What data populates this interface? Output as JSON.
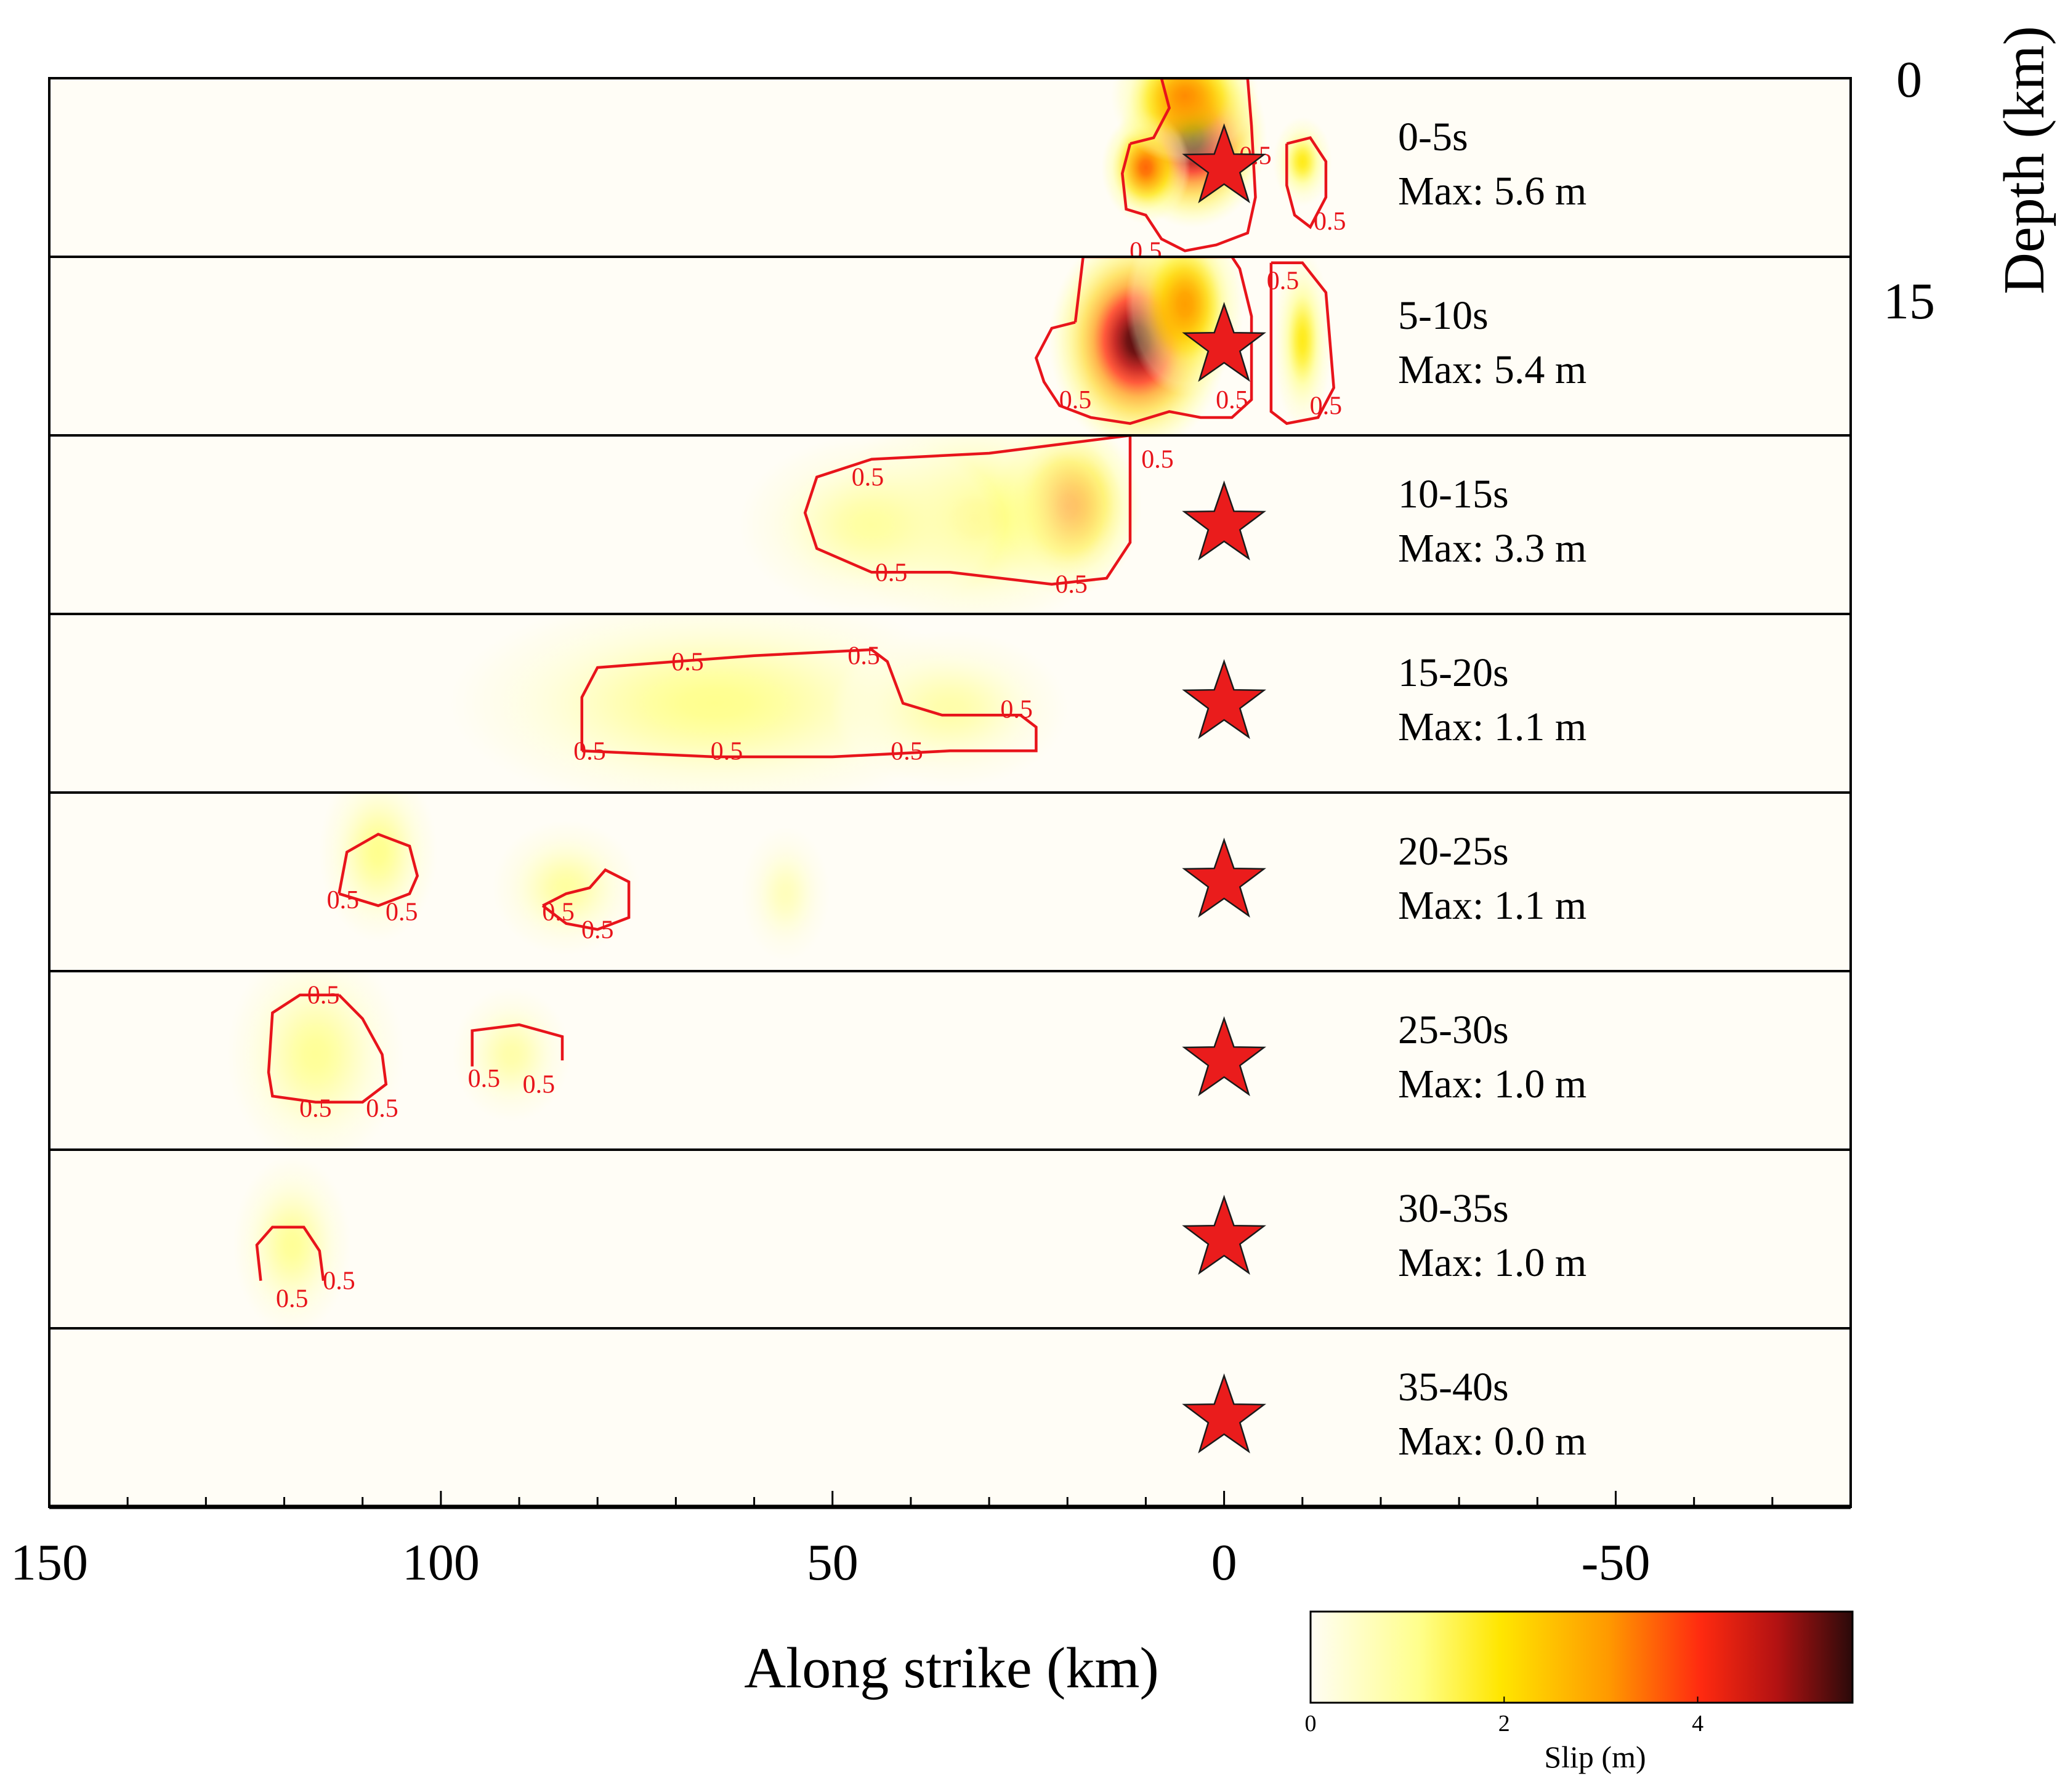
{
  "chart_data": {
    "type": "heatmap",
    "description_free": true,
    "xlabel": "Along strike (km)",
    "ylabel": "Depth (km)",
    "xlim": [
      150,
      -80
    ],
    "x_ticks": [
      150,
      100,
      50,
      0,
      -50
    ],
    "x_minor_step": 10,
    "depth_ticks": [
      0,
      15
    ],
    "depth_range": [
      0,
      15
    ],
    "hypocenter_x": 0,
    "contour_level": 0.5,
    "contour_label": "0.5",
    "colorbar": {
      "title": "Slip (m)",
      "range": [
        0,
        5.6
      ],
      "ticks": [
        "0",
        "2",
        "4"
      ],
      "tick_values": [
        0,
        2,
        4
      ],
      "colors": [
        "#fffdf4",
        "#ffff8c",
        "#ffe600",
        "#ff9900",
        "#ff2a10",
        "#b31212",
        "#2a0a0a"
      ]
    },
    "panels": [
      {
        "time": "0-5s",
        "max_text": "Max: 5.6 m",
        "max": 5.6,
        "patches": [
          {
            "x": 4,
            "d": 5.0,
            "sx": 5,
            "sd": 4.0,
            "slip": 5.6
          },
          {
            "x": 10,
            "d": 7.5,
            "sx": 3,
            "sd": 2.5,
            "slip": 3.5
          },
          {
            "x": 5,
            "d": 1.5,
            "sx": 5,
            "sd": 3.0,
            "slip": 3.2
          },
          {
            "x": -10,
            "d": 7.0,
            "sx": 2,
            "sd": 2.0,
            "slip": 1.8
          }
        ],
        "contours": [
          {
            "pts": [
              [
                12,
                5.5
              ],
              [
                13,
                8
              ],
              [
                12.5,
                11
              ],
              [
                10,
                11.5
              ],
              [
                8,
                13.5
              ],
              [
                5,
                14.5
              ],
              [
                1,
                14
              ],
              [
                -3,
                13
              ],
              [
                -4,
                10
              ],
              [
                -3.5,
                4
              ],
              [
                -3,
                0
              ],
              [
                8,
                0
              ],
              [
                7,
                2.5
              ],
              [
                9,
                5
              ],
              [
                12,
                5.5
              ]
            ],
            "labels": [
              [
                10,
                14.5
              ],
              [
                -4,
                6.5
              ]
            ]
          },
          {
            "pts": [
              [
                -8,
                5.5
              ],
              [
                -11,
                5
              ],
              [
                -13,
                7
              ],
              [
                -13,
                10
              ],
              [
                -11,
                12.5
              ],
              [
                -9,
                11.5
              ],
              [
                -8,
                9
              ],
              [
                -8,
                5.5
              ]
            ],
            "labels": [
              [
                -13.5,
                12
              ]
            ]
          }
        ]
      },
      {
        "time": "5-10s",
        "max_text": "Max: 5.4 m",
        "max": 5.4,
        "patches": [
          {
            "x": 11,
            "d": 7.0,
            "sx": 6,
            "sd": 5.0,
            "slip": 5.4
          },
          {
            "x": 5,
            "d": 4.0,
            "sx": 4,
            "sd": 4.0,
            "slip": 3.0
          },
          {
            "x": -10,
            "d": 7.0,
            "sx": 2,
            "sd": 4.0,
            "slip": 1.8
          }
        ],
        "contours": [
          {
            "pts": [
              [
                19,
                5.5
              ],
              [
                22,
                6
              ],
              [
                24,
                8.5
              ],
              [
                23,
                10.5
              ],
              [
                21,
                12.5
              ],
              [
                17,
                13.5
              ],
              [
                12,
                14
              ],
              [
                7,
                13
              ],
              [
                3,
                13.5
              ],
              [
                -1,
                13.5
              ],
              [
                -3.5,
                12
              ],
              [
                -3.5,
                5
              ],
              [
                -2,
                1
              ],
              [
                -1,
                0
              ],
              [
                18,
                0
              ],
              [
                19,
                5.5
              ]
            ],
            "labels": [
              [
                19,
                12
              ],
              [
                -1,
                12
              ]
            ]
          },
          {
            "pts": [
              [
                -6,
                0.5
              ],
              [
                -6,
                13
              ],
              [
                -8,
                14
              ],
              [
                -12,
                13.5
              ],
              [
                -14,
                11
              ],
              [
                -13,
                3
              ],
              [
                -10,
                0.5
              ],
              [
                -6,
                0.5
              ]
            ],
            "labels": [
              [
                -7.5,
                2
              ],
              [
                -13,
                12.5
              ]
            ]
          }
        ]
      },
      {
        "time": "10-15s",
        "max_text": "Max: 3.3 m",
        "max": 3.3,
        "patches": [
          {
            "x": 20,
            "d": 6.0,
            "sx": 5,
            "sd": 4.0,
            "slip": 3.3
          },
          {
            "x": 32,
            "d": 7.0,
            "sx": 10,
            "sd": 5.0,
            "slip": 1.3
          },
          {
            "x": 45,
            "d": 7.5,
            "sx": 9,
            "sd": 4.0,
            "slip": 0.9
          }
        ],
        "contours": [
          {
            "pts": [
              [
                12,
                0
              ],
              [
                30,
                1.5
              ],
              [
                45,
                2.0
              ],
              [
                52,
                3.5
              ],
              [
                53.5,
                6.5
              ],
              [
                52,
                9.5
              ],
              [
                45,
                11.5
              ],
              [
                35,
                11.5
              ],
              [
                22,
                12.5
              ],
              [
                15,
                12
              ],
              [
                12,
                9
              ],
              [
                12,
                0
              ]
            ],
            "labels": [
              [
                45.5,
                3.5
              ],
              [
                42.5,
                11.5
              ],
              [
                19.5,
                12.5
              ],
              [
                8.5,
                2
              ]
            ]
          }
        ]
      },
      {
        "time": "15-20s",
        "max_text": "Max: 1.1 m",
        "max": 1.1,
        "patches": [
          {
            "x": 65,
            "d": 7.5,
            "sx": 18,
            "sd": 5.0,
            "slip": 1.1
          },
          {
            "x": 35,
            "d": 8.0,
            "sx": 8,
            "sd": 3.5,
            "slip": 0.8
          }
        ],
        "contours": [
          {
            "pts": [
              [
                82,
                11.5
              ],
              [
                82,
                7
              ],
              [
                80,
                4.5
              ],
              [
                70,
                4
              ],
              [
                60,
                3.5
              ],
              [
                45,
                3.0
              ],
              [
                43,
                4
              ],
              [
                41,
                7.5
              ],
              [
                36,
                8.5
              ],
              [
                26,
                8.5
              ],
              [
                24,
                9.5
              ],
              [
                24,
                11.5
              ],
              [
                35,
                11.5
              ],
              [
                50,
                12
              ],
              [
                65,
                12
              ],
              [
                82,
                11.5
              ]
            ],
            "labels": [
              [
                68.5,
                4
              ],
              [
                46,
                3.5
              ],
              [
                26.5,
                8
              ],
              [
                81,
                11.5
              ],
              [
                63.5,
                11.5
              ],
              [
                40.5,
                11.5
              ]
            ]
          }
        ]
      },
      {
        "time": "20-25s",
        "max_text": "Max: 1.1 m",
        "max": 1.1,
        "patches": [
          {
            "x": 108,
            "d": 5.0,
            "sx": 4,
            "sd": 4.0,
            "slip": 1.1
          },
          {
            "x": 84,
            "d": 8.0,
            "sx": 5,
            "sd": 3.0,
            "slip": 0.9
          },
          {
            "x": 56,
            "d": 8.5,
            "sx": 3,
            "sd": 3.0,
            "slip": 0.6
          }
        ],
        "contours": [
          {
            "pts": [
              [
                113,
                8.5
              ],
              [
                112,
                5
              ],
              [
                108,
                3.5
              ],
              [
                104,
                4.5
              ],
              [
                103,
                7
              ],
              [
                104,
                8.5
              ],
              [
                108,
                9.5
              ],
              [
                113,
                8.5
              ]
            ],
            "labels": [
              [
                112.5,
                9
              ],
              [
                105,
                10
              ]
            ]
          },
          {
            "pts": [
              [
                87,
                9.5
              ],
              [
                84,
                11
              ],
              [
                80,
                11.5
              ],
              [
                76,
                10.5
              ],
              [
                76,
                7.5
              ],
              [
                79,
                6.5
              ],
              [
                81,
                8
              ],
              [
                84,
                8.5
              ],
              [
                87,
                9.5
              ]
            ],
            "labels": [
              [
                85,
                10
              ],
              [
                80,
                11.5
              ]
            ]
          }
        ]
      },
      {
        "time": "25-30s",
        "max_text": "Max: 1.0 m",
        "max": 1.0,
        "patches": [
          {
            "x": 116,
            "d": 7.0,
            "sx": 6,
            "sd": 5.0,
            "slip": 1.0
          },
          {
            "x": 91,
            "d": 7.0,
            "sx": 4,
            "sd": 3.0,
            "slip": 0.8
          }
        ],
        "contours": [
          {
            "pts": [
              [
                113,
                2.0
              ],
              [
                118,
                2.0
              ],
              [
                121.5,
                3.5
              ],
              [
                122,
                8.5
              ],
              [
                121.5,
                10.5
              ],
              [
                116,
                11
              ],
              [
                110,
                11
              ],
              [
                107,
                9.5
              ],
              [
                107.5,
                7
              ],
              [
                110,
                4
              ],
              [
                113,
                2.0
              ]
            ],
            "labels": [
              [
                115,
                2.0
              ],
              [
                116,
                11.5
              ],
              [
                107.5,
                11.5
              ]
            ]
          },
          {
            "pts": [
              [
                96,
                8
              ],
              [
                96,
                5
              ],
              [
                90,
                4.5
              ],
              [
                84.5,
                5.5
              ],
              [
                84.5,
                7.5
              ]
            ],
            "labels": [
              [
                94.5,
                9
              ],
              [
                87.5,
                9.5
              ]
            ]
          }
        ]
      },
      {
        "time": "30-35s",
        "max_text": "Max: 1.0 m",
        "max": 1.0,
        "patches": [
          {
            "x": 119,
            "d": 8.0,
            "sx": 4,
            "sd": 4.0,
            "slip": 1.0
          }
        ],
        "contours": [
          {
            "pts": [
              [
                123,
                11
              ],
              [
                123.5,
                8
              ],
              [
                121.5,
                6.5
              ],
              [
                117.5,
                6.5
              ],
              [
                115.5,
                8.5
              ],
              [
                115,
                11
              ]
            ],
            "labels": [
              [
                119,
                12.5
              ],
              [
                113,
                11
              ]
            ]
          }
        ]
      },
      {
        "time": "35-40s",
        "max_text": "Max: 0.0 m",
        "max": 0.0,
        "patches": [],
        "contours": []
      }
    ]
  }
}
